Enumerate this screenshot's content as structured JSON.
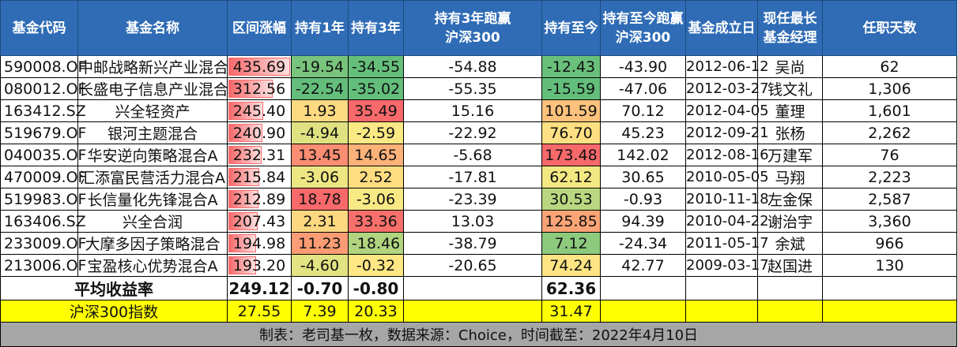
{
  "headers": [
    "基金代码",
    "基金名称",
    "区间涨幅",
    "持有1年",
    "持有3年",
    "持有3年跑赢\n沪深300",
    "持有至今",
    "持有至今跑赢\n沪深300",
    "基金成立日",
    "现任最长\n基金经理",
    "任职天数"
  ],
  "rows": [
    {
      "code": "590008.OF",
      "name": "中邮战略新兴产业混合",
      "range": "435.69",
      "y1": "-19.54",
      "y3": "-34.55",
      "y3_vs": "-54.88",
      "hold": "-12.43",
      "hold_vs": "-43.90",
      "date": "2012-06-12",
      "manager": "吴尚",
      "days": "62"
    },
    {
      "code": "080012.OF",
      "name": "长盛电子信息产业混合",
      "range": "312.56",
      "y1": "-22.54",
      "y3": "-35.02",
      "y3_vs": "-55.35",
      "hold": "-15.59",
      "hold_vs": "-47.06",
      "date": "2012-03-27",
      "manager": "钱文礼",
      "days": "1,306"
    },
    {
      "code": "163412.SZ",
      "name": "兴全轻资产",
      "range": "245.40",
      "y1": "1.93",
      "y3": "35.49",
      "y3_vs": "15.16",
      "hold": "101.59",
      "hold_vs": "70.12",
      "date": "2012-04-05",
      "manager": "董理",
      "days": "1,601"
    },
    {
      "code": "519679.OF",
      "name": "银河主题混合",
      "range": "240.90",
      "y1": "-4.94",
      "y3": "-2.59",
      "y3_vs": "-22.92",
      "hold": "76.70",
      "hold_vs": "45.23",
      "date": "2012-09-21",
      "manager": "张杨",
      "days": "2,262"
    },
    {
      "code": "040035.OF",
      "name": "华安逆向策略混合A",
      "range": "232.31",
      "y1": "13.45",
      "y3": "14.65",
      "y3_vs": "-5.68",
      "hold": "173.48",
      "hold_vs": "142.02",
      "date": "2012-08-16",
      "manager": "万建军",
      "days": "76"
    },
    {
      "code": "470009.OF",
      "name": "汇添富民营活力混合A",
      "range": "215.84",
      "y1": "-3.06",
      "y3": "2.52",
      "y3_vs": "-17.81",
      "hold": "62.12",
      "hold_vs": "30.65",
      "date": "2010-05-05",
      "manager": "马翔",
      "days": "2,223"
    },
    {
      "code": "519983.OF",
      "name": "长信量化先锋混合A",
      "range": "212.89",
      "y1": "18.78",
      "y3": "-3.06",
      "y3_vs": "-23.39",
      "hold": "30.53",
      "hold_vs": "-0.93",
      "date": "2010-11-18",
      "manager": "左金保",
      "days": "2,587"
    },
    {
      "code": "163406.SZ",
      "name": "兴全合润",
      "range": "207.43",
      "y1": "2.31",
      "y3": "33.36",
      "y3_vs": "13.03",
      "hold": "125.85",
      "hold_vs": "94.39",
      "date": "2010-04-22",
      "manager": "谢治宇",
      "days": "3,360"
    },
    {
      "code": "233009.OF",
      "name": "大摩多因子策略混合",
      "range": "194.98",
      "y1": "11.23",
      "y3": "-18.46",
      "y3_vs": "-38.79",
      "hold": "7.12",
      "hold_vs": "-24.34",
      "date": "2011-05-17",
      "manager": "余斌",
      "days": "966"
    },
    {
      "code": "213006.OF",
      "name": "宝盈核心优势混合A",
      "range": "193.20",
      "y1": "-4.60",
      "y3": "-0.32",
      "y3_vs": "-20.65",
      "hold": "74.24",
      "hold_vs": "42.77",
      "date": "2009-03-17",
      "manager": "赵国进",
      "days": "130"
    }
  ],
  "average": {
    "label": "平均收益率",
    "range": "249.12",
    "y1": "-0.70",
    "y3": "-0.80",
    "hold": "62.36"
  },
  "index": {
    "label": "沪深300指数",
    "range": "27.55",
    "y1": "7.39",
    "y3": "20.33",
    "hold": "31.47"
  },
  "footer": "制表：老司基一枚，数据来源：Choice，时间截至：2022年4月10日",
  "colors": {
    "header": "#2f6cb5",
    "low": "#63be7b",
    "mid": "#ffeb84",
    "high": "#f8696b",
    "bar": "#f8696b",
    "index_row": "#ffff00",
    "footer": "#a6a6a6"
  }
}
